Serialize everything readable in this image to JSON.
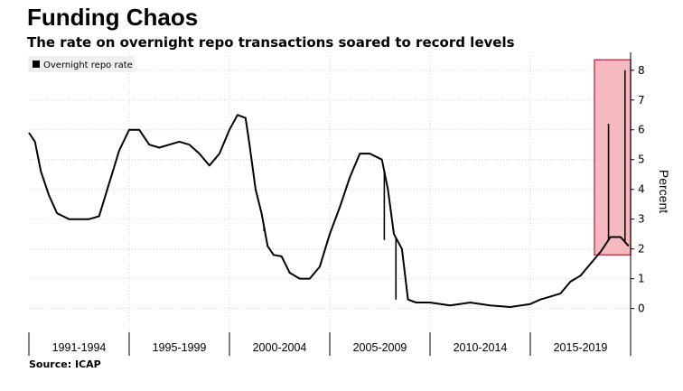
{
  "header": {
    "title": "Funding Chaos",
    "subtitle": "The rate on overnight repo transactions soared to record levels"
  },
  "footer": {
    "source": "Source: ICAP"
  },
  "chart_data": {
    "type": "line",
    "title": "Funding Chaos",
    "subtitle": "The rate on overnight repo transactions soared to record levels",
    "ylabel": "Percent",
    "xlabel": "",
    "ylim": [
      -0.8,
      8.6
    ],
    "xlim": [
      1990.0,
      2020.0
    ],
    "yticks": [
      0,
      1,
      2,
      3,
      4,
      5,
      6,
      7,
      8
    ],
    "y_axis_side": "right",
    "grid": "vertical and horizontal dotted",
    "legend": {
      "position": "top-left",
      "entries": [
        "Overnight repo rate"
      ]
    },
    "x_categories": [
      {
        "label": "1991-1994",
        "start": 1990.0,
        "end": 1995.0
      },
      {
        "label": "1995-1999",
        "start": 1995.0,
        "end": 2000.0
      },
      {
        "label": "2000-2004",
        "start": 2000.0,
        "end": 2005.0
      },
      {
        "label": "2005-2009",
        "start": 2005.0,
        "end": 2010.0
      },
      {
        "label": "2010-2014",
        "start": 2010.0,
        "end": 2015.0
      },
      {
        "label": "2015-2019",
        "start": 2015.0,
        "end": 2020.0
      }
    ],
    "series": [
      {
        "name": "Overnight repo rate",
        "color": "#000000",
        "points": [
          [
            1990.0,
            5.9
          ],
          [
            1990.3,
            5.6
          ],
          [
            1990.6,
            4.6
          ],
          [
            1991.0,
            3.8
          ],
          [
            1991.4,
            3.2
          ],
          [
            1992.0,
            3.0
          ],
          [
            1992.5,
            3.0
          ],
          [
            1993.0,
            3.0
          ],
          [
            1993.5,
            3.1
          ],
          [
            1994.0,
            4.2
          ],
          [
            1994.5,
            5.3
          ],
          [
            1995.0,
            6.0
          ],
          [
            1995.5,
            6.0
          ],
          [
            1996.0,
            5.5
          ],
          [
            1996.5,
            5.4
          ],
          [
            1997.0,
            5.5
          ],
          [
            1997.5,
            5.6
          ],
          [
            1998.0,
            5.5
          ],
          [
            1998.5,
            5.2
          ],
          [
            1999.0,
            4.8
          ],
          [
            1999.5,
            5.2
          ],
          [
            2000.0,
            6.0
          ],
          [
            2000.4,
            6.5
          ],
          [
            2000.8,
            6.4
          ],
          [
            2001.0,
            5.5
          ],
          [
            2001.3,
            4.0
          ],
          [
            2001.6,
            3.2
          ],
          [
            2001.9,
            2.1
          ],
          [
            2002.2,
            1.8
          ],
          [
            2002.6,
            1.75
          ],
          [
            2003.0,
            1.2
          ],
          [
            2003.5,
            1.0
          ],
          [
            2004.0,
            1.0
          ],
          [
            2004.5,
            1.4
          ],
          [
            2005.0,
            2.5
          ],
          [
            2005.5,
            3.4
          ],
          [
            2006.0,
            4.4
          ],
          [
            2006.5,
            5.2
          ],
          [
            2007.0,
            5.2
          ],
          [
            2007.6,
            5.0
          ],
          [
            2007.9,
            4.0
          ],
          [
            2008.2,
            2.5
          ],
          [
            2008.6,
            2.0
          ],
          [
            2008.9,
            0.3
          ],
          [
            2009.3,
            0.2
          ],
          [
            2010.0,
            0.2
          ],
          [
            2011.0,
            0.1
          ],
          [
            2012.0,
            0.2
          ],
          [
            2013.0,
            0.1
          ],
          [
            2014.0,
            0.05
          ],
          [
            2015.0,
            0.15
          ],
          [
            2015.5,
            0.3
          ],
          [
            2016.0,
            0.4
          ],
          [
            2016.5,
            0.5
          ],
          [
            2017.0,
            0.9
          ],
          [
            2017.5,
            1.1
          ],
          [
            2018.0,
            1.5
          ],
          [
            2018.5,
            1.9
          ],
          [
            2019.0,
            2.4
          ],
          [
            2019.5,
            2.4
          ],
          [
            2019.9,
            2.1
          ]
        ]
      }
    ],
    "spikes": [
      {
        "x": 2001.72,
        "y": 2.6
      },
      {
        "x": 2007.72,
        "y": 2.3
      },
      {
        "x": 2008.3,
        "y": 0.3
      },
      {
        "x": 2018.9,
        "y": 6.2
      },
      {
        "x": 2019.72,
        "y": 8.0
      }
    ],
    "highlight": {
      "x_start": 2018.2,
      "x_end": 2020.0,
      "y_start": 1.8,
      "y_end": 8.35,
      "color": "#f4a7b0"
    }
  }
}
